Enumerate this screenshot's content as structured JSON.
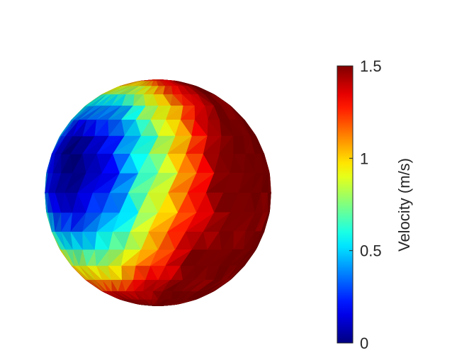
{
  "chart_data": {
    "type": "heatmap",
    "title": "",
    "colormap": "jet",
    "colorbar": {
      "label": "Velocity (m/s)",
      "range": [
        0,
        1.5
      ],
      "ticks": [
        {
          "value": 0,
          "label": "0"
        },
        {
          "value": 0.5,
          "label": "0.5"
        },
        {
          "value": 1,
          "label": "1"
        },
        {
          "value": 1.5,
          "label": "1.5"
        }
      ]
    },
    "surface": {
      "shape": "sphere",
      "mesh": "triangulated",
      "min_value": 0,
      "max_value": 1.5,
      "min_region": "left",
      "max_region": "right"
    }
  }
}
